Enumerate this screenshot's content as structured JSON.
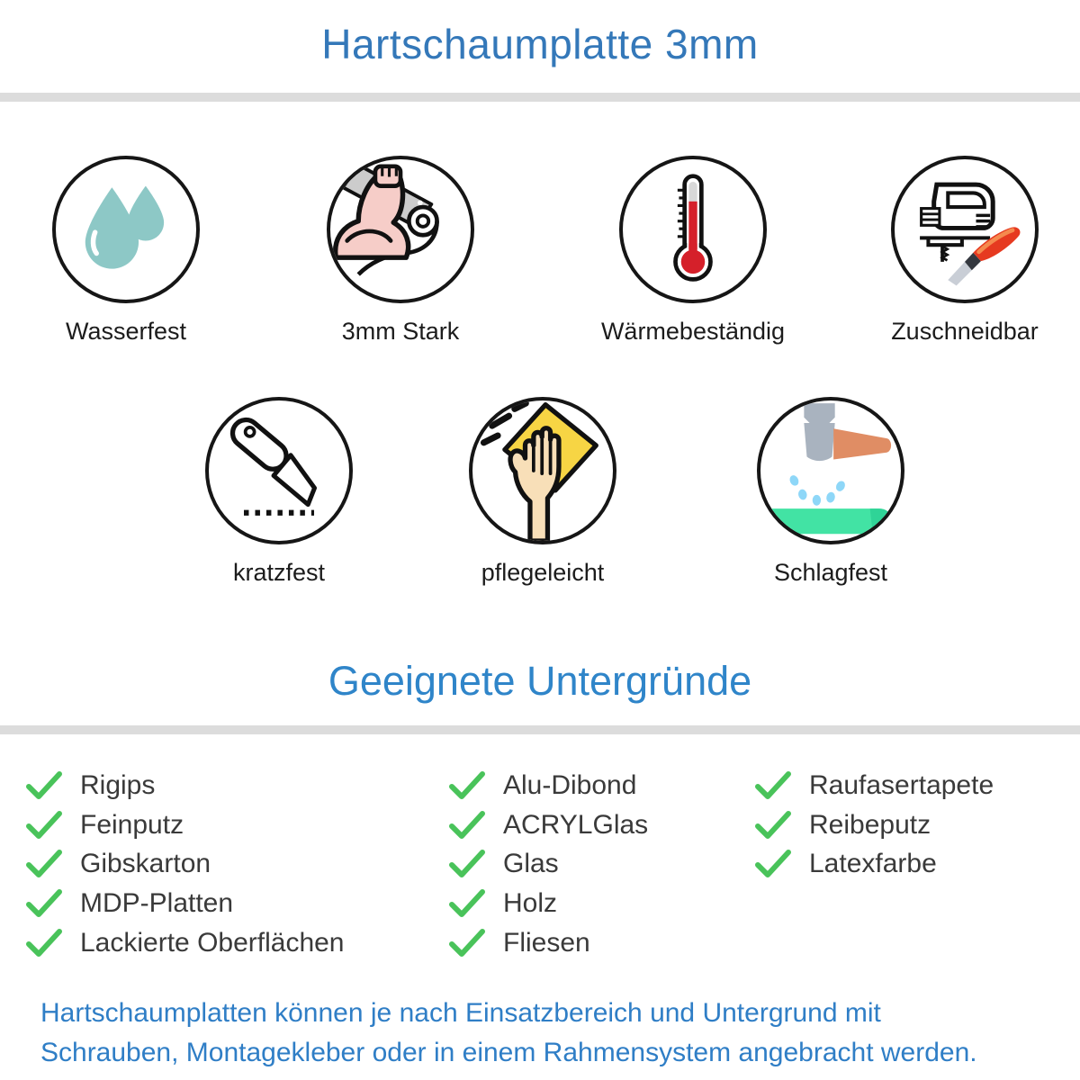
{
  "page": {
    "title": "Hartschaumplatte 3mm"
  },
  "features": [
    {
      "label": "Wasserfest",
      "icon": "water-drops"
    },
    {
      "label": "3mm Stark",
      "icon": "flexed-arm-rolled-sheet"
    },
    {
      "label": "Wärmebeständig",
      "icon": "thermometer"
    },
    {
      "label": "Zuschneidbar",
      "icon": "jigsaw-cutter-knife"
    },
    {
      "label": "kratzfest",
      "icon": "utility-knife"
    },
    {
      "label": "pflegeleicht",
      "icon": "cleaning-hand-cloth"
    },
    {
      "label": "Schlagfest",
      "icon": "hammer-impact"
    }
  ],
  "substrates": {
    "title": "Geeignete Untergründe",
    "columns": [
      [
        "Rigips",
        "Feinputz",
        "Gibskarton",
        "MDP-Platten",
        "Lackierte Oberflächen"
      ],
      [
        "Alu-Dibond",
        "ACRYLGlas",
        "Glas",
        "Holz",
        "Fliesen"
      ],
      [
        "Raufasertapete",
        "Reibeputz",
        "Latexfarbe"
      ]
    ]
  },
  "footer": {
    "line1": "Hartschaumplatten können je nach Einsatzbereich und Untergrund mit",
    "line2": "Schrauben, Montagekleber oder in einem Rahmensystem angebracht werden."
  },
  "colors": {
    "title_blue": "#3478b9",
    "section_blue": "#2f85c9",
    "footer_blue": "#2f7ec6",
    "divider_gray": "#dcdcdc",
    "check_green": "#49c35a",
    "drop_teal": "#8dc8c6",
    "thermometer_red": "#d5202a",
    "cloth_yellow": "#f7d544",
    "surface_green": "#42e3a4",
    "hammer_gray": "#a9b3bf",
    "handle_orange": "#e08d64",
    "arm_pink": "#f6cdc8",
    "knife_red": "#e63a20"
  }
}
